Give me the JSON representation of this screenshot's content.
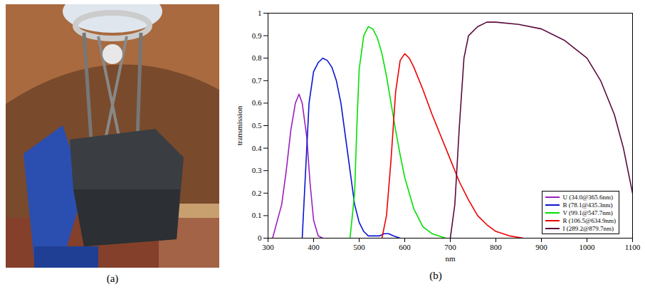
{
  "figure": {
    "panel_labels": [
      "(a)",
      "(b)"
    ]
  },
  "chart_data": {
    "type": "line",
    "x_label": "nm",
    "y_label": "transmission",
    "xlim": [
      300,
      1100
    ],
    "xticks": [
      300,
      400,
      500,
      600,
      700,
      800,
      900,
      1000,
      1100
    ],
    "ylim": [
      0,
      1
    ],
    "yticks": [
      0,
      0.1,
      0.2,
      0.3,
      0.4,
      0.5,
      0.6,
      0.7,
      0.8,
      0.9,
      1
    ],
    "grid": false,
    "legend": "lower right",
    "series": [
      {
        "name": "U (34.0@365.6nm)",
        "color": "#9a1fc0",
        "x": [
          310,
          330,
          340,
          350,
          360,
          368,
          375,
          385,
          392,
          400,
          410,
          420
        ],
        "values": [
          0,
          0.15,
          0.3,
          0.48,
          0.6,
          0.64,
          0.6,
          0.45,
          0.25,
          0.08,
          0.01,
          0
        ]
      },
      {
        "name": "B (78.1@435.3nm)",
        "color": "#0a14d0",
        "x": [
          375,
          380,
          385,
          390,
          400,
          410,
          420,
          430,
          440,
          450,
          460,
          470,
          480,
          490,
          500,
          510,
          520,
          530,
          545,
          555,
          565,
          575,
          590
        ],
        "values": [
          0,
          0.2,
          0.4,
          0.6,
          0.74,
          0.78,
          0.8,
          0.79,
          0.76,
          0.7,
          0.6,
          0.45,
          0.3,
          0.15,
          0.07,
          0.03,
          0.01,
          0.01,
          0.01,
          0.02,
          0.02,
          0.01,
          0
        ]
      },
      {
        "name": "V (99.1@547.7nm)",
        "color": "#00e000",
        "x": [
          480,
          490,
          495,
          500,
          510,
          520,
          530,
          540,
          550,
          560,
          570,
          580,
          590,
          600,
          620,
          640,
          660,
          690
        ],
        "values": [
          0,
          0.2,
          0.5,
          0.75,
          0.9,
          0.94,
          0.93,
          0.89,
          0.82,
          0.72,
          0.6,
          0.48,
          0.37,
          0.27,
          0.13,
          0.05,
          0.02,
          0
        ]
      },
      {
        "name": "R (106.5@634.9nm)",
        "color": "#ee0000",
        "x": [
          550,
          560,
          570,
          580,
          590,
          600,
          610,
          620,
          640,
          660,
          680,
          700,
          720,
          740,
          760,
          780,
          800,
          830,
          860
        ],
        "values": [
          0,
          0.1,
          0.35,
          0.65,
          0.79,
          0.82,
          0.8,
          0.76,
          0.66,
          0.55,
          0.45,
          0.35,
          0.25,
          0.17,
          0.1,
          0.06,
          0.03,
          0.01,
          0
        ]
      },
      {
        "name": "I (289.2@879.7nm)",
        "color": "#5a0a3c",
        "x": [
          700,
          710,
          720,
          730,
          740,
          760,
          780,
          800,
          850,
          900,
          950,
          1000,
          1030,
          1060,
          1080,
          1100
        ],
        "values": [
          0,
          0.15,
          0.5,
          0.8,
          0.9,
          0.94,
          0.96,
          0.96,
          0.95,
          0.93,
          0.88,
          0.8,
          0.7,
          0.55,
          0.4,
          0.2
        ]
      }
    ]
  }
}
